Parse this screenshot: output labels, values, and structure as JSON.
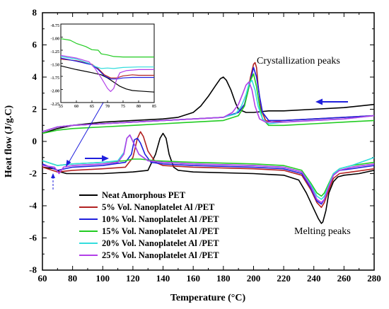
{
  "chart_data": {
    "type": "line",
    "xlabel": "Temperature (°C)",
    "ylabel": "Heat flow (J/g.C)",
    "xlim": [
      60,
      280
    ],
    "ylim": [
      -8,
      8
    ],
    "x_ticks": [
      "60",
      "80",
      "100",
      "120",
      "140",
      "160",
      "180",
      "200",
      "220",
      "240",
      "260",
      "280"
    ],
    "y_ticks": [
      "-8",
      "-6",
      "-4",
      "-2",
      "0",
      "2",
      "4",
      "6",
      "8"
    ],
    "annotations": [
      "Crystallization peaks",
      "Melting peaks"
    ],
    "colors": {
      "neat": "#000000",
      "vol5": "#b22222",
      "vol10": "#1f1fdd",
      "vol15": "#22cc22",
      "vol20": "#33dddd",
      "vol25": "#b23fe8",
      "arrow": "#1f1fdd"
    },
    "series": [
      {
        "name": "Neat Amorphous PET",
        "cooling": {
          "x": [
            60,
            70,
            80,
            100,
            120,
            140,
            150,
            160,
            165,
            170,
            175,
            178,
            180,
            182,
            185,
            188,
            190,
            195,
            200,
            210,
            220,
            240,
            260,
            280
          ],
          "y": [
            0.5,
            0.8,
            1.0,
            1.2,
            1.3,
            1.4,
            1.5,
            1.8,
            2.2,
            2.8,
            3.5,
            3.9,
            4.0,
            3.8,
            3.2,
            2.4,
            2.0,
            1.8,
            1.8,
            1.9,
            1.9,
            2.0,
            2.1,
            2.3
          ]
        },
        "heating": {
          "x": [
            60,
            68,
            72,
            76,
            80,
            100,
            120,
            130,
            135,
            138,
            140,
            142,
            144,
            147,
            150,
            160,
            200,
            220,
            230,
            235,
            240,
            243,
            245,
            246,
            248,
            250,
            253,
            256,
            260,
            270,
            280
          ],
          "y": [
            -1.6,
            -1.7,
            -1.9,
            -2.0,
            -2.0,
            -2.0,
            -1.9,
            -1.8,
            -0.8,
            0.2,
            0.5,
            0.2,
            -0.8,
            -1.6,
            -1.8,
            -1.9,
            -2.0,
            -2.1,
            -2.4,
            -3.2,
            -4.2,
            -4.8,
            -5.1,
            -5.0,
            -4.3,
            -3.2,
            -2.5,
            -2.2,
            -2.1,
            -2.0,
            -1.8
          ]
        }
      },
      {
        "name": "5% Vol. Nanoplatelet Al /PET",
        "cooling": {
          "x": [
            60,
            70,
            80,
            100,
            120,
            140,
            160,
            180,
            190,
            194,
            196,
            198,
            200,
            201,
            202,
            203,
            205,
            208,
            212,
            220,
            240,
            260,
            280
          ],
          "y": [
            0.6,
            0.9,
            1.0,
            1.1,
            1.2,
            1.3,
            1.4,
            1.5,
            1.8,
            2.3,
            3.0,
            4.0,
            4.8,
            4.9,
            4.6,
            3.5,
            2.0,
            1.3,
            1.2,
            1.3,
            1.4,
            1.5,
            1.6
          ]
        },
        "heating": {
          "x": [
            60,
            70,
            80,
            100,
            115,
            120,
            123,
            125,
            127,
            130,
            135,
            140,
            160,
            200,
            220,
            232,
            238,
            242,
            245,
            247,
            250,
            253,
            257,
            265,
            280
          ],
          "y": [
            -1.6,
            -1.9,
            -1.8,
            -1.7,
            -1.6,
            -1.0,
            0.2,
            0.6,
            0.3,
            -0.6,
            -1.3,
            -1.5,
            -1.6,
            -1.7,
            -1.8,
            -2.1,
            -3.0,
            -3.8,
            -4.1,
            -3.8,
            -3.0,
            -2.3,
            -2.0,
            -1.9,
            -1.7
          ]
        }
      },
      {
        "name": "10% Vol. Nanoplatelet Al /PET",
        "cooling": {
          "x": [
            60,
            70,
            80,
            100,
            120,
            140,
            160,
            180,
            190,
            194,
            196,
            198,
            200,
            202,
            204,
            206,
            210,
            220,
            240,
            260,
            280
          ],
          "y": [
            0.6,
            0.9,
            1.0,
            1.1,
            1.2,
            1.3,
            1.4,
            1.5,
            1.8,
            2.3,
            3.0,
            3.8,
            4.6,
            4.0,
            2.8,
            1.8,
            1.3,
            1.3,
            1.4,
            1.5,
            1.6
          ]
        },
        "heating": {
          "x": [
            60,
            70,
            80,
            100,
            115,
            119,
            121,
            123,
            125,
            128,
            132,
            140,
            160,
            200,
            220,
            232,
            238,
            242,
            245,
            247,
            250,
            253,
            257,
            265,
            280
          ],
          "y": [
            -1.4,
            -1.8,
            -1.6,
            -1.5,
            -1.3,
            -0.8,
            0.1,
            0.2,
            -0.1,
            -0.8,
            -1.3,
            -1.4,
            -1.5,
            -1.6,
            -1.7,
            -2.0,
            -2.9,
            -3.7,
            -3.9,
            -3.6,
            -2.8,
            -2.1,
            -1.8,
            -1.7,
            -1.5
          ]
        }
      },
      {
        "name": "15% Vol. Nanoplatelet Al /PET",
        "cooling": {
          "x": [
            60,
            70,
            80,
            100,
            120,
            140,
            160,
            180,
            190,
            194,
            196,
            198,
            200,
            202,
            204,
            206,
            210,
            220,
            240,
            260,
            280
          ],
          "y": [
            0.5,
            0.7,
            0.8,
            0.9,
            1.0,
            1.1,
            1.2,
            1.3,
            1.6,
            2.2,
            3.0,
            3.8,
            4.2,
            3.4,
            2.2,
            1.4,
            1.0,
            1.0,
            1.1,
            1.2,
            1.3
          ]
        },
        "heating": {
          "x": [
            60,
            70,
            80,
            100,
            115,
            120,
            125,
            135,
            160,
            200,
            220,
            232,
            238,
            242,
            245,
            247,
            250,
            253,
            257,
            265,
            280
          ],
          "y": [
            -1.2,
            -1.5,
            -1.4,
            -1.3,
            -1.2,
            -1.1,
            -1.1,
            -1.2,
            -1.3,
            -1.4,
            -1.5,
            -1.8,
            -2.6,
            -3.2,
            -3.4,
            -3.2,
            -2.6,
            -2.0,
            -1.7,
            -1.5,
            -1.3
          ]
        }
      },
      {
        "name": "20% Vol. Nanoplatelet Al /PET",
        "cooling": {
          "x": [
            60,
            70,
            80,
            100,
            120,
            140,
            160,
            180,
            188,
            192,
            195,
            197,
            199,
            201,
            203,
            206,
            210,
            220,
            240,
            260,
            280
          ],
          "y": [
            0.6,
            0.9,
            1.0,
            1.1,
            1.2,
            1.3,
            1.4,
            1.5,
            1.7,
            2.2,
            2.9,
            3.6,
            3.8,
            3.2,
            2.2,
            1.4,
            1.1,
            1.2,
            1.3,
            1.4,
            1.6
          ]
        },
        "heating": {
          "x": [
            60,
            70,
            80,
            100,
            110,
            114,
            116,
            118,
            120,
            124,
            130,
            140,
            160,
            200,
            220,
            232,
            238,
            242,
            245,
            247,
            250,
            253,
            257,
            265,
            280
          ],
          "y": [
            -1.2,
            -1.5,
            -1.4,
            -1.3,
            -1.2,
            -0.7,
            0.2,
            0.4,
            0.0,
            -0.8,
            -1.2,
            -1.3,
            -1.4,
            -1.5,
            -1.6,
            -1.9,
            -2.7,
            -3.4,
            -3.6,
            -3.4,
            -2.7,
            -2.0,
            -1.7,
            -1.5,
            -1.0
          ]
        }
      },
      {
        "name": "25% Vol. Nanoplatelet Al /PET",
        "cooling": {
          "x": [
            60,
            70,
            80,
            100,
            120,
            140,
            160,
            180,
            186,
            190,
            193,
            195,
            197,
            199,
            201,
            204,
            208,
            220,
            240,
            260,
            280
          ],
          "y": [
            0.6,
            0.9,
            1.0,
            1.1,
            1.2,
            1.3,
            1.4,
            1.5,
            1.8,
            2.3,
            3.0,
            3.5,
            3.7,
            3.2,
            2.2,
            1.4,
            1.2,
            1.2,
            1.3,
            1.4,
            1.6
          ]
        },
        "heating": {
          "x": [
            60,
            68,
            71,
            74,
            80,
            100,
            110,
            114,
            116,
            118,
            120,
            124,
            130,
            140,
            160,
            200,
            220,
            232,
            238,
            242,
            245,
            247,
            250,
            253,
            257,
            265,
            280
          ],
          "y": [
            -1.5,
            -1.6,
            -2.0,
            -1.6,
            -1.5,
            -1.4,
            -1.3,
            -0.8,
            0.2,
            0.4,
            0.0,
            -0.8,
            -1.2,
            -1.3,
            -1.4,
            -1.5,
            -1.6,
            -1.9,
            -2.8,
            -3.6,
            -3.8,
            -3.6,
            -2.8,
            -2.1,
            -1.8,
            -1.6,
            -1.4
          ]
        }
      }
    ],
    "inset": {
      "xlim": [
        55,
        85
      ],
      "ylim": [
        -2.25,
        -0.75
      ],
      "x_ticks": [
        "55",
        "60",
        "65",
        "70",
        "75",
        "80",
        "85"
      ],
      "y_ticks": [
        "-0.75",
        "-1.00",
        "-1.25",
        "-1.50",
        "-1.75",
        "-2.00",
        "-2.25"
      ],
      "series": [
        {
          "color_key": "neat",
          "x": [
            55,
            60,
            65,
            68,
            70,
            72,
            74,
            76,
            78,
            80,
            85
          ],
          "y": [
            -1.55,
            -1.62,
            -1.68,
            -1.72,
            -1.78,
            -1.86,
            -1.94,
            -1.99,
            -2.02,
            -2.03,
            -2.05
          ]
        },
        {
          "color_key": "vol5",
          "x": [
            55,
            60,
            65,
            67,
            69,
            71,
            73,
            75,
            78,
            80,
            85
          ],
          "y": [
            -1.42,
            -1.45,
            -1.52,
            -1.6,
            -1.72,
            -1.78,
            -1.78,
            -1.74,
            -1.72,
            -1.73,
            -1.73
          ]
        },
        {
          "color_key": "vol10",
          "x": [
            55,
            60,
            65,
            67,
            69,
            71,
            73,
            75,
            78,
            80,
            85
          ],
          "y": [
            -1.4,
            -1.46,
            -1.53,
            -1.62,
            -1.74,
            -1.8,
            -1.8,
            -1.78,
            -1.77,
            -1.77,
            -1.77
          ]
        },
        {
          "color_key": "vol15",
          "x": [
            55,
            58,
            60,
            63,
            65,
            67,
            68,
            70,
            72,
            75,
            80,
            85
          ],
          "y": [
            -1.03,
            -1.06,
            -1.12,
            -1.18,
            -1.24,
            -1.25,
            -1.32,
            -1.34,
            -1.37,
            -1.38,
            -1.38,
            -1.38
          ]
        },
        {
          "color_key": "vol20",
          "x": [
            55,
            60,
            64,
            66,
            68,
            70,
            72,
            75,
            80,
            85
          ],
          "y": [
            -1.37,
            -1.42,
            -1.5,
            -1.56,
            -1.6,
            -1.59,
            -1.6,
            -1.58,
            -1.57,
            -1.57
          ]
        },
        {
          "color_key": "vol25",
          "x": [
            55,
            60,
            64,
            66,
            68,
            70,
            71,
            72,
            73,
            74,
            76,
            80,
            85
          ],
          "y": [
            -1.35,
            -1.4,
            -1.47,
            -1.6,
            -1.78,
            -1.98,
            -2.04,
            -1.98,
            -1.8,
            -1.68,
            -1.64,
            -1.62,
            -1.62
          ]
        }
      ]
    }
  }
}
